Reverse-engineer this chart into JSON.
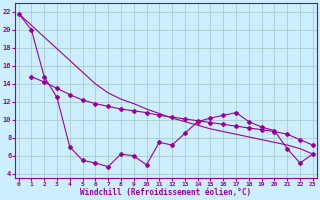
{
  "xlabel": "Windchill (Refroidissement éolien,°C)",
  "bg_color": "#cceeff",
  "grid_color": "#aacccc",
  "line_color": "#990099",
  "y_ticks": [
    4,
    6,
    8,
    10,
    12,
    14,
    16,
    18,
    20,
    22
  ],
  "ylim": [
    3.5,
    23.0
  ],
  "xlim": [
    -0.3,
    23.3
  ],
  "line1_x": [
    0,
    1,
    2,
    3,
    4,
    5,
    6,
    7,
    8,
    9,
    10,
    11,
    12,
    13,
    14,
    15,
    16,
    17,
    18,
    19,
    20,
    21,
    22,
    23
  ],
  "line1_y": [
    21.8,
    20.0,
    14.8,
    12.5,
    7.0,
    5.5,
    5.2,
    4.8,
    6.2,
    6.0,
    5.0,
    7.5,
    7.2,
    8.5,
    9.8,
    10.2,
    10.5,
    10.8,
    9.8,
    9.2,
    8.8,
    6.8,
    5.2,
    6.2
  ],
  "line2_x": [
    1,
    2,
    3,
    4,
    5,
    6,
    7,
    8,
    9,
    10,
    11,
    12,
    13,
    14,
    15,
    16,
    17,
    18,
    19,
    20,
    21,
    22,
    23
  ],
  "line2_y": [
    14.8,
    14.2,
    13.5,
    12.8,
    12.2,
    11.8,
    11.5,
    11.2,
    11.0,
    10.8,
    10.5,
    10.3,
    10.1,
    9.9,
    9.7,
    9.5,
    9.3,
    9.1,
    8.9,
    8.7,
    8.4,
    7.8,
    7.2
  ],
  "line3_x": [
    0,
    1,
    2,
    3,
    4,
    5,
    6,
    7,
    8,
    9,
    10,
    11,
    12,
    13,
    14,
    15,
    16,
    17,
    18,
    19,
    20,
    21,
    22,
    23
  ],
  "line3_y": [
    21.8,
    20.5,
    19.2,
    17.9,
    16.6,
    15.3,
    14.0,
    13.0,
    12.3,
    11.8,
    11.2,
    10.7,
    10.2,
    9.8,
    9.4,
    9.0,
    8.7,
    8.4,
    8.1,
    7.8,
    7.5,
    7.2,
    6.8,
    6.2
  ]
}
